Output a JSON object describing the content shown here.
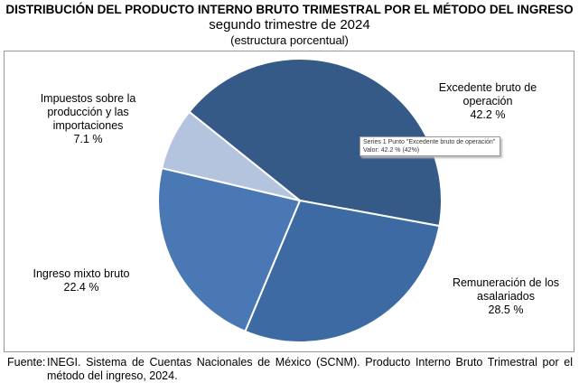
{
  "chart_data": {
    "type": "pie",
    "title": "DISTRIBUCIÓN DEL PRODUCTO INTERNO BRUTO TRIMESTRAL POR EL MÉTODO DEL INGRESO",
    "subtitle": "segundo trimestre de 2024",
    "note": "(estructura porcentual)",
    "categories": [
      "Excedente bruto de operación",
      "Remuneración de los asalariados",
      "Ingreso mixto bruto",
      "Impuestos sobre la producción y las importaciones"
    ],
    "values": [
      42.2,
      28.5,
      22.4,
      7.1
    ],
    "value_labels": [
      "42.2 %",
      "28.5 %",
      "22.4 %",
      "7.1 %"
    ],
    "colors": [
      "#355a87",
      "#3d6aa3",
      "#4a78b5",
      "#b4c3de"
    ],
    "tooltip": [
      "Series 1 Punto \"Excedente bruto de operación\"",
      "Valor: 42.2 % (42%)"
    ],
    "source_label": "Fuente:",
    "source": "INEGI. Sistema de Cuentas Nacionales de México (SCNM). Producto Interno Bruto Trimestral por el método del ingreso, 2024."
  }
}
